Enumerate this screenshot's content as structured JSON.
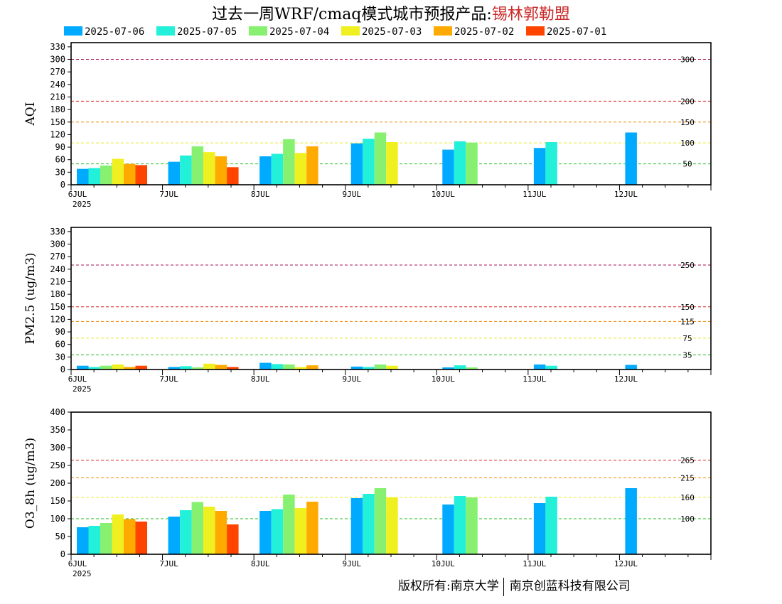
{
  "header": {
    "title_prefix": "过去一周WRF/cmaq模式城市预报产品:",
    "city": "锡林郭勒盟"
  },
  "colors": {
    "series": [
      "#00aaff",
      "#22f0d8",
      "#88f070",
      "#f0f020",
      "#ffaa00",
      "#ff4400"
    ],
    "threshold_green": "#22bb22",
    "threshold_yellow": "#e8e830",
    "threshold_orange": "#ee8800",
    "threshold_red": "#dd2222",
    "threshold_purple": "#aa1155",
    "threshold_maroon": "#990033"
  },
  "footer": {
    "copyright_left": "版权所有:南京大学",
    "copyright_right": "南京创蓝科技有限公司"
  },
  "chart_data": [
    {
      "type": "bar",
      "ylabel": "AQI",
      "ylim": [
        0,
        340
      ],
      "yticks": [
        0,
        30,
        60,
        90,
        120,
        150,
        180,
        210,
        240,
        270,
        300,
        330
      ],
      "categories": [
        "6JUL",
        "7JUL",
        "8JUL",
        "9JUL",
        "10JUL",
        "11JUL",
        "12JUL"
      ],
      "year_label": "2025",
      "legend": [
        "2025-07-06",
        "2025-07-05",
        "2025-07-04",
        "2025-07-03",
        "2025-07-02",
        "2025-07-01"
      ],
      "series": [
        {
          "name": "2025-07-06",
          "values": [
            38,
            55,
            68,
            99,
            84,
            88,
            125
          ]
        },
        {
          "name": "2025-07-05",
          "values": [
            40,
            70,
            74,
            110,
            104,
            102,
            null
          ]
        },
        {
          "name": "2025-07-04",
          "values": [
            46,
            92,
            109,
            125,
            101,
            null,
            null
          ]
        },
        {
          "name": "2025-07-03",
          "values": [
            62,
            78,
            76,
            102,
            null,
            null,
            null
          ]
        },
        {
          "name": "2025-07-02",
          "values": [
            50,
            68,
            92,
            null,
            null,
            null,
            null
          ]
        },
        {
          "name": "2025-07-01",
          "values": [
            47,
            42,
            null,
            null,
            null,
            null,
            null
          ]
        }
      ],
      "thresholds": [
        {
          "value": 50,
          "label": "50",
          "color": "threshold_green"
        },
        {
          "value": 100,
          "label": "100",
          "color": "threshold_yellow"
        },
        {
          "value": 150,
          "label": "150",
          "color": "threshold_orange"
        },
        {
          "value": 200,
          "label": "200",
          "color": "threshold_red"
        },
        {
          "value": 300,
          "label": "300",
          "color": "threshold_purple"
        }
      ]
    },
    {
      "type": "bar",
      "ylabel": "PM2.5 (ug/m3)",
      "ylim": [
        0,
        340
      ],
      "yticks": [
        0,
        30,
        60,
        90,
        120,
        150,
        180,
        210,
        240,
        270,
        300,
        330
      ],
      "categories": [
        "6JUL",
        "7JUL",
        "8JUL",
        "9JUL",
        "10JUL",
        "11JUL",
        "12JUL"
      ],
      "year_label": "2025",
      "series": [
        {
          "name": "2025-07-06",
          "values": [
            9,
            6,
            16,
            7,
            5,
            12,
            11
          ]
        },
        {
          "name": "2025-07-05",
          "values": [
            6,
            8,
            13,
            6,
            10,
            9,
            null
          ]
        },
        {
          "name": "2025-07-04",
          "values": [
            9,
            5,
            12,
            12,
            5,
            null,
            null
          ]
        },
        {
          "name": "2025-07-03",
          "values": [
            12,
            14,
            6,
            9,
            null,
            null,
            null
          ]
        },
        {
          "name": "2025-07-02",
          "values": [
            6,
            11,
            10,
            null,
            null,
            null,
            null
          ]
        },
        {
          "name": "2025-07-01",
          "values": [
            9,
            6,
            null,
            null,
            null,
            null,
            null
          ]
        }
      ],
      "thresholds": [
        {
          "value": 35,
          "label": "35",
          "color": "threshold_green"
        },
        {
          "value": 75,
          "label": "75",
          "color": "threshold_yellow"
        },
        {
          "value": 115,
          "label": "115",
          "color": "threshold_orange"
        },
        {
          "value": 150,
          "label": "150",
          "color": "threshold_red"
        },
        {
          "value": 250,
          "label": "250",
          "color": "threshold_purple"
        }
      ]
    },
    {
      "type": "bar",
      "ylabel": "O3_8h (ug/m3)",
      "ylim": [
        0,
        400
      ],
      "yticks": [
        0,
        50,
        100,
        150,
        200,
        250,
        300,
        350,
        400
      ],
      "categories": [
        "6JUL",
        "7JUL",
        "8JUL",
        "9JUL",
        "10JUL",
        "11JUL",
        "12JUL"
      ],
      "year_label": "2025",
      "series": [
        {
          "name": "2025-07-06",
          "values": [
            76,
            106,
            122,
            158,
            140,
            144,
            186
          ]
        },
        {
          "name": "2025-07-05",
          "values": [
            80,
            124,
            127,
            170,
            164,
            162,
            null
          ]
        },
        {
          "name": "2025-07-04",
          "values": [
            88,
            147,
            168,
            186,
            160,
            null,
            null
          ]
        },
        {
          "name": "2025-07-03",
          "values": [
            112,
            134,
            130,
            160,
            null,
            null,
            null
          ]
        },
        {
          "name": "2025-07-02",
          "values": [
            99,
            122,
            148,
            null,
            null,
            null,
            null
          ]
        },
        {
          "name": "2025-07-01",
          "values": [
            92,
            84,
            null,
            null,
            null,
            null,
            null
          ]
        }
      ],
      "thresholds": [
        {
          "value": 100,
          "label": "100",
          "color": "threshold_green"
        },
        {
          "value": 160,
          "label": "160",
          "color": "threshold_yellow"
        },
        {
          "value": 215,
          "label": "215",
          "color": "threshold_orange"
        },
        {
          "value": 265,
          "label": "265",
          "color": "threshold_red"
        }
      ]
    }
  ]
}
